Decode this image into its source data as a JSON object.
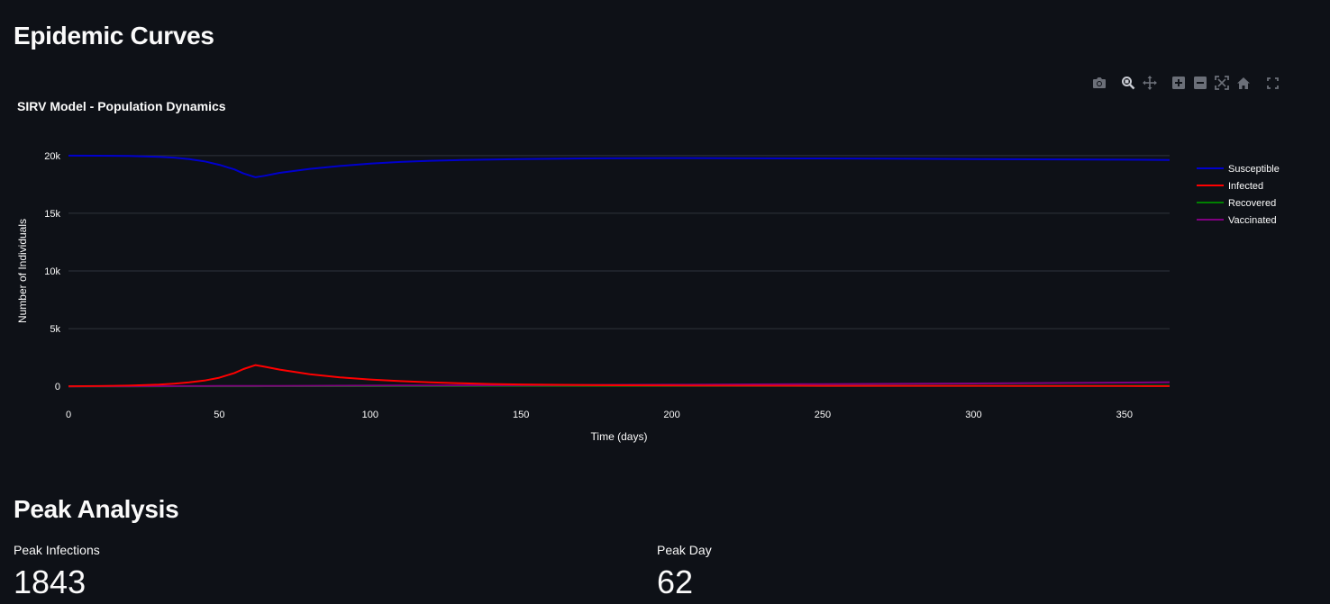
{
  "header": {
    "title": "Epidemic Curves"
  },
  "modebar": {
    "icons": [
      "camera-icon",
      "zoom-icon",
      "pan-icon",
      "zoom-in-icon",
      "zoom-out-icon",
      "autoscale-icon",
      "reset-axes-icon",
      "fullscreen-icon"
    ]
  },
  "chart_data": {
    "type": "line",
    "title": "SIRV Model - Population Dynamics",
    "xlabel": "Time (days)",
    "ylabel": "Number of Individuals",
    "xlim": [
      0,
      365
    ],
    "ylim": [
      -1000,
      21000
    ],
    "xticks": [
      0,
      50,
      100,
      150,
      200,
      250,
      300,
      350
    ],
    "xtick_labels": [
      "0",
      "50",
      "100",
      "150",
      "200",
      "250",
      "300",
      "350"
    ],
    "yticks": [
      0,
      5000,
      10000,
      15000,
      20000
    ],
    "ytick_labels": [
      "0",
      "5k",
      "10k",
      "15k",
      "20k"
    ],
    "grid": true,
    "legend_position": "right",
    "x": [
      0,
      10,
      20,
      30,
      35,
      40,
      45,
      50,
      55,
      58,
      62,
      65,
      70,
      80,
      90,
      100,
      110,
      120,
      130,
      140,
      150,
      175,
      200,
      250,
      300,
      350,
      365
    ],
    "series": [
      {
        "name": "Susceptible",
        "color": "#0000cd",
        "values": [
          19990,
          19985,
          19960,
          19890,
          19820,
          19700,
          19500,
          19200,
          18800,
          18450,
          18120,
          18250,
          18500,
          18850,
          19100,
          19300,
          19450,
          19550,
          19610,
          19660,
          19700,
          19760,
          19780,
          19750,
          19700,
          19640,
          19620
        ]
      },
      {
        "name": "Infected",
        "color": "#ff0000",
        "values": [
          10,
          20,
          60,
          150,
          230,
          340,
          500,
          750,
          1150,
          1500,
          1843,
          1700,
          1450,
          1050,
          780,
          590,
          450,
          340,
          260,
          200,
          160,
          100,
          70,
          40,
          30,
          20,
          18
        ]
      },
      {
        "name": "Recovered",
        "color": "#008000",
        "values": [
          0,
          0,
          1,
          2,
          3,
          4,
          5,
          6,
          8,
          9,
          10,
          11,
          12,
          14,
          16,
          18,
          20,
          22,
          24,
          26,
          28,
          32,
          35,
          40,
          44,
          48,
          50
        ]
      },
      {
        "name": "Vaccinated",
        "color": "#800080",
        "values": [
          0,
          5,
          10,
          15,
          18,
          20,
          23,
          26,
          29,
          31,
          33,
          35,
          38,
          45,
          52,
          60,
          68,
          76,
          84,
          92,
          100,
          120,
          140,
          190,
          250,
          330,
          360
        ]
      }
    ]
  },
  "peak": {
    "title": "Peak Analysis",
    "infections_label": "Peak Infections",
    "infections_value": "1843",
    "day_label": "Peak Day",
    "day_value": "62"
  }
}
